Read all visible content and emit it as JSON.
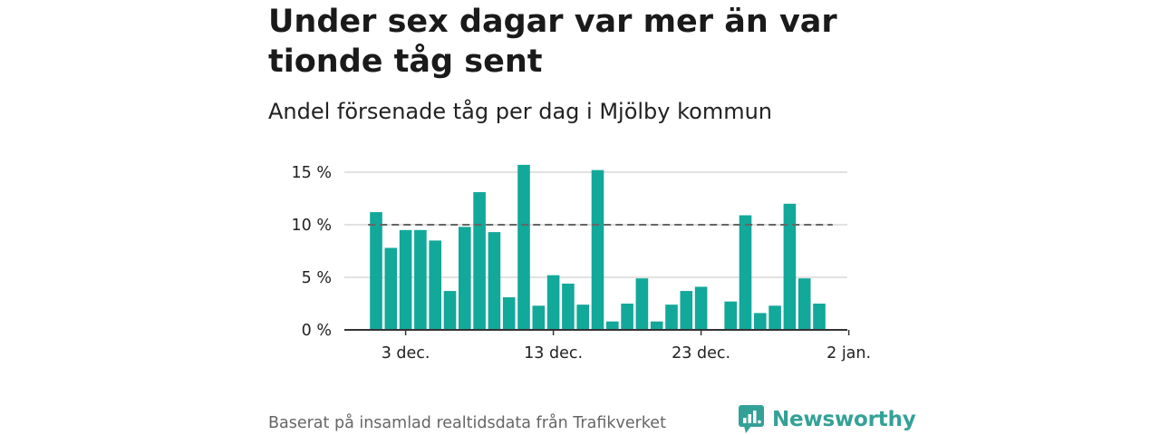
{
  "title": "Under sex dagar var mer än var tionde tåg sent",
  "subtitle": "Andel försenade tåg per dag i Mjölby kommun",
  "source": "Baserat på insamlad realtidsdata från Trafikverket",
  "brand": {
    "name": "Newsworthy",
    "logo_icon": "bar-chart-speech-bubble-icon",
    "color": "#34a197"
  },
  "colors": {
    "bar": "#12a89a",
    "grid": "#d9d9d9",
    "axis": "#333333",
    "reference_line": "#666666"
  },
  "chart_data": {
    "type": "bar",
    "x_axis": "dates (day of December/January)",
    "categories": [
      "1 dec.",
      "2 dec.",
      "3 dec.",
      "4 dec.",
      "5 dec.",
      "6 dec.",
      "7 dec.",
      "8 dec.",
      "9 dec.",
      "10 dec.",
      "11 dec.",
      "12 dec.",
      "13 dec.",
      "14 dec.",
      "15 dec.",
      "16 dec.",
      "17 dec.",
      "18 dec.",
      "19 dec.",
      "20 dec.",
      "21 dec.",
      "22 dec.",
      "23 dec.",
      "24 dec.",
      "25 dec.",
      "26 dec.",
      "27 dec.",
      "28 dec.",
      "29 dec.",
      "30 dec.",
      "31 dec."
    ],
    "values": [
      11.2,
      7.8,
      9.5,
      9.5,
      8.5,
      3.7,
      9.8,
      13.1,
      9.3,
      3.1,
      15.7,
      2.3,
      5.2,
      4.4,
      2.4,
      15.2,
      0.8,
      2.5,
      4.9,
      0.8,
      2.4,
      3.7,
      4.1,
      0,
      2.7,
      10.9,
      1.6,
      2.3,
      12.0,
      4.9,
      2.5
    ],
    "unit": "%",
    "ylim": [
      0,
      15
    ],
    "yticks": [
      "0 %",
      "5 %",
      "10 %",
      "15 %"
    ],
    "ytick_values": [
      0,
      5,
      10,
      15
    ],
    "xticks": [
      "3 dec.",
      "13 dec.",
      "23 dec.",
      "2 jan."
    ],
    "xtick_indices": [
      2,
      12,
      22,
      32
    ],
    "reference_line": {
      "value": 10,
      "style": "dashed"
    },
    "xlabel": "",
    "ylabel": "",
    "grid": true,
    "legend": false
  }
}
